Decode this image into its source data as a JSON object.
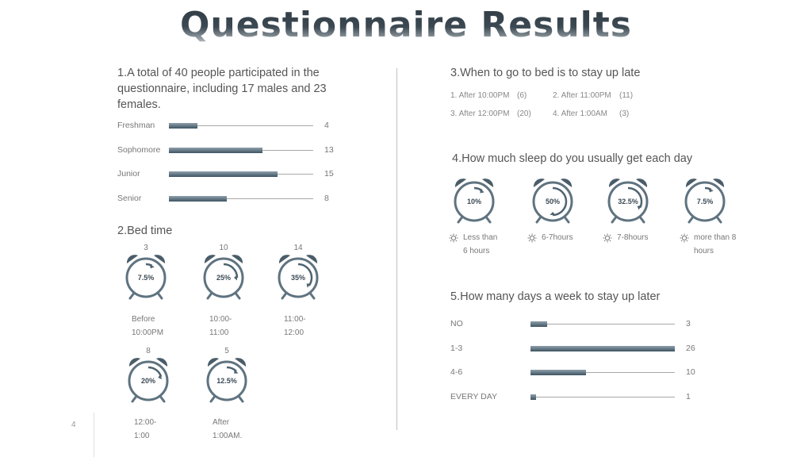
{
  "title": "Questionnaire Results",
  "page_number": "4",
  "section1": {
    "heading": "1.A total of 40 people participated in the questionnaire, including 17 males and 23 females.",
    "bars": [
      {
        "label": "Freshman",
        "value": 4
      },
      {
        "label": "Sophomore",
        "value": 13
      },
      {
        "label": "Junior",
        "value": 15
      },
      {
        "label": "Senior",
        "value": 8
      }
    ]
  },
  "section2": {
    "heading": "2.Bed time",
    "clocks": [
      {
        "count": "3",
        "percent": "7.5%",
        "fraction": 0.075,
        "label1": "Before",
        "label2": "10:00PM"
      },
      {
        "count": "10",
        "percent": "25%",
        "fraction": 0.25,
        "label1": "10:00-",
        "label2": "11:00"
      },
      {
        "count": "14",
        "percent": "35%",
        "fraction": 0.35,
        "label1": "11:00-",
        "label2": "12:00"
      },
      {
        "count": "8",
        "percent": "20%",
        "fraction": 0.2,
        "label1": "12:00-",
        "label2": "1:00"
      },
      {
        "count": "5",
        "percent": "12.5%",
        "fraction": 0.125,
        "label1": "After",
        "label2": "1:00AM."
      }
    ]
  },
  "section3": {
    "heading": "3.When to go to bed is to stay up late",
    "answers": [
      {
        "text": "1. After 10:00PM",
        "count": "(6)"
      },
      {
        "text": "2. After 11:00PM",
        "count": "(11)"
      },
      {
        "text": "3. After 12:00PM",
        "count": "(20)"
      },
      {
        "text": "4. After 1:00AM",
        "count": "(3)"
      }
    ]
  },
  "section4": {
    "heading": "4.How much sleep do you usually get each day",
    "clocks": [
      {
        "percent": "10%",
        "fraction": 0.1,
        "label1": "Less than",
        "label2": "6 hours"
      },
      {
        "percent": "50%",
        "fraction": 0.5,
        "label1": "6-7hours",
        "label2": ""
      },
      {
        "percent": "32.5%",
        "fraction": 0.325,
        "label1": "7-8hours",
        "label2": ""
      },
      {
        "percent": "7.5%",
        "fraction": 0.075,
        "label1": "more than 8",
        "label2": "hours"
      }
    ]
  },
  "section5": {
    "heading": "5.How many days a week to stay up later",
    "max": 26,
    "bars": [
      {
        "label": "NO",
        "value": 3
      },
      {
        "label": "1-3",
        "value": 26
      },
      {
        "label": "4-6",
        "value": 10
      },
      {
        "label": "EVERY DAY",
        "value": 1
      }
    ]
  },
  "colors": {
    "bar_dark": "#3e5463",
    "bar_light": "#8fa0ab",
    "clock_stroke": "#5f7380",
    "clock_bell": "#4a5d69"
  }
}
